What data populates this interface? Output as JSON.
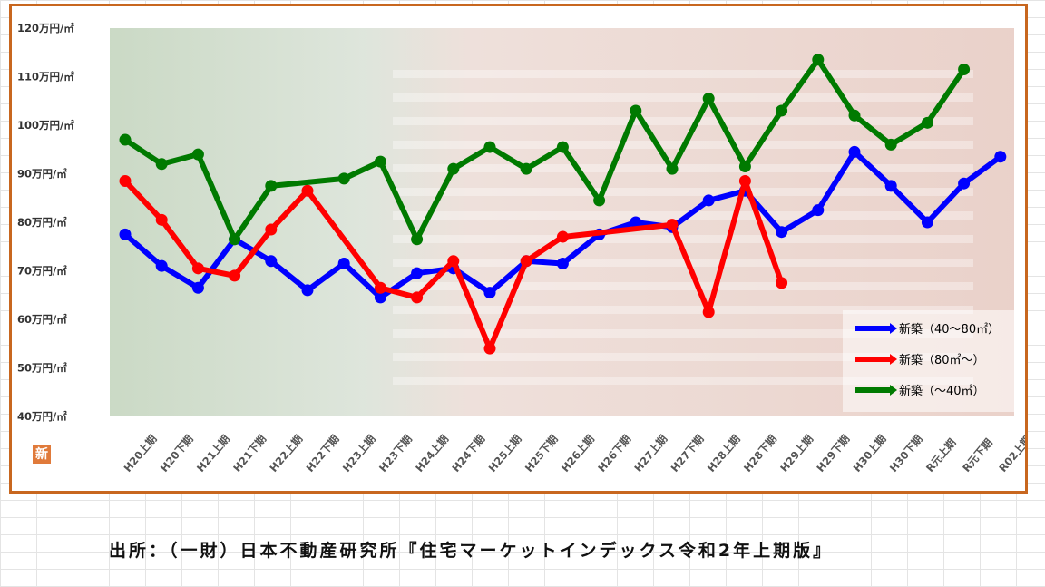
{
  "chart_data": {
    "type": "line",
    "title": "",
    "xlabel": "",
    "ylabel": "",
    "ylim": [
      40,
      120
    ],
    "yticks": [
      {
        "value": 120,
        "label": "120万円/㎡"
      },
      {
        "value": 110,
        "label": "110万円/㎡"
      },
      {
        "value": 100,
        "label": "100万円/㎡"
      },
      {
        "value": 90,
        "label": "90万円/㎡"
      },
      {
        "value": 80,
        "label": "80万円/㎡"
      },
      {
        "value": 70,
        "label": "70万円/㎡"
      },
      {
        "value": 60,
        "label": "60万円/㎡"
      },
      {
        "value": 50,
        "label": "50万円/㎡"
      },
      {
        "value": 40,
        "label": "40万円/㎡"
      }
    ],
    "categories": [
      "H20上期",
      "H20下期",
      "H21上期",
      "H21下期",
      "H22上期",
      "H22下期",
      "H23上期",
      "H23下期",
      "H24上期",
      "H24下期",
      "H25上期",
      "H25下期",
      "H26上期",
      "H26下期",
      "H27上期",
      "H27下期",
      "H28上期",
      "H28下期",
      "H29上期",
      "H29下期",
      "H30上期",
      "H30下期",
      "R元上期",
      "R元下期",
      "R02上期"
    ],
    "grid": false,
    "legend": "bottom-right",
    "series": [
      {
        "name": "新築（40～80㎡）",
        "color": "#0000ff",
        "values": [
          77.5,
          71,
          66.5,
          76.5,
          72,
          66,
          71.5,
          64.5,
          69.5,
          70.5,
          65.5,
          72,
          71.5,
          77.5,
          80,
          79,
          84.5,
          86.5,
          78,
          82.5,
          94.5,
          87.5,
          80,
          88,
          93.5
        ]
      },
      {
        "name": "新築（80㎡～）",
        "color": "#ff0000",
        "values": [
          88.5,
          80.5,
          70.5,
          69,
          78.5,
          86.5,
          null,
          66.5,
          64.5,
          72,
          54,
          72,
          77,
          null,
          null,
          79.5,
          61.5,
          88.5,
          67.5,
          null,
          null,
          null,
          null,
          null,
          null
        ]
      },
      {
        "name": "新築（～40㎡）",
        "color": "#007a00",
        "values": [
          97,
          92,
          94,
          76.5,
          87.5,
          null,
          89,
          92.5,
          76.5,
          91,
          95.5,
          91,
          95.5,
          84.5,
          103,
          91,
          105.5,
          91.5,
          103,
          113.5,
          102,
          96,
          100.5,
          111.5,
          null
        ]
      }
    ]
  },
  "source_text": "出所：（一財）日本不動産研究所『住宅マーケットインデックス令和2年上期版』",
  "logo_char": "新"
}
